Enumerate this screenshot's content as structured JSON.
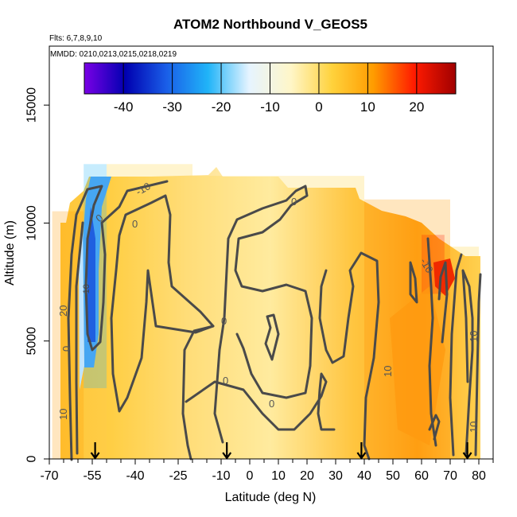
{
  "chart_data": {
    "type": "heatmap",
    "title": "ATOM2 Northbound V_GEOS5",
    "notes": [
      "Flts: 6,7,8,9,10",
      "MMDD: 0210,0213,0215,0218,0219"
    ],
    "xlabel": "Latitude (deg N)",
    "ylabel": "Altitude (m)",
    "xlim": [
      -70,
      85
    ],
    "ylim": [
      0,
      17500
    ],
    "x_ticks": [
      -70,
      -55,
      -40,
      -25,
      -10,
      0,
      10,
      20,
      30,
      40,
      50,
      60,
      70,
      80
    ],
    "y_ticks": [
      0,
      5000,
      10000,
      15000
    ],
    "colorbar": {
      "range": [
        -48,
        28
      ],
      "ticks": [
        -40,
        -30,
        -20,
        -10,
        0,
        10,
        20
      ],
      "colors": [
        "#7a00e6",
        "#0000b0",
        "#1a5fe8",
        "#20b4f8",
        "#e6f4ff",
        "#fff6c8",
        "#ffd23c",
        "#ff9c00",
        "#ff1a00",
        "#a00000"
      ]
    },
    "contour_labels": [
      "-10",
      "0",
      "0",
      "-10",
      "0",
      "10",
      "20",
      "0",
      "-10",
      "0",
      "10",
      "10",
      "0",
      "0",
      "10"
    ],
    "flight_markers_lat": [
      -54,
      -8,
      39,
      76
    ],
    "zonal_sections": [
      {
        "lat_range": [
          -69,
          -58
        ],
        "alt_range": [
          0,
          10500
        ],
        "mean_v": 8
      },
      {
        "lat_range": [
          -58,
          -50
        ],
        "alt_range": [
          3000,
          12500
        ],
        "mean_v": -20
      },
      {
        "lat_range": [
          -50,
          -20
        ],
        "alt_range": [
          0,
          12500
        ],
        "mean_v": 6
      },
      {
        "lat_range": [
          -20,
          10
        ],
        "alt_range": [
          0,
          12000
        ],
        "mean_v": 3
      },
      {
        "lat_range": [
          10,
          40
        ],
        "alt_range": [
          0,
          12000
        ],
        "mean_v": 2
      },
      {
        "lat_range": [
          40,
          70
        ],
        "alt_range": [
          0,
          11000
        ],
        "mean_v": 10
      },
      {
        "lat_range": [
          60,
          68
        ],
        "alt_range": [
          7000,
          9500
        ],
        "mean_v": 20
      },
      {
        "lat_range": [
          70,
          80
        ],
        "alt_range": [
          0,
          9000
        ],
        "mean_v": 2
      }
    ]
  }
}
